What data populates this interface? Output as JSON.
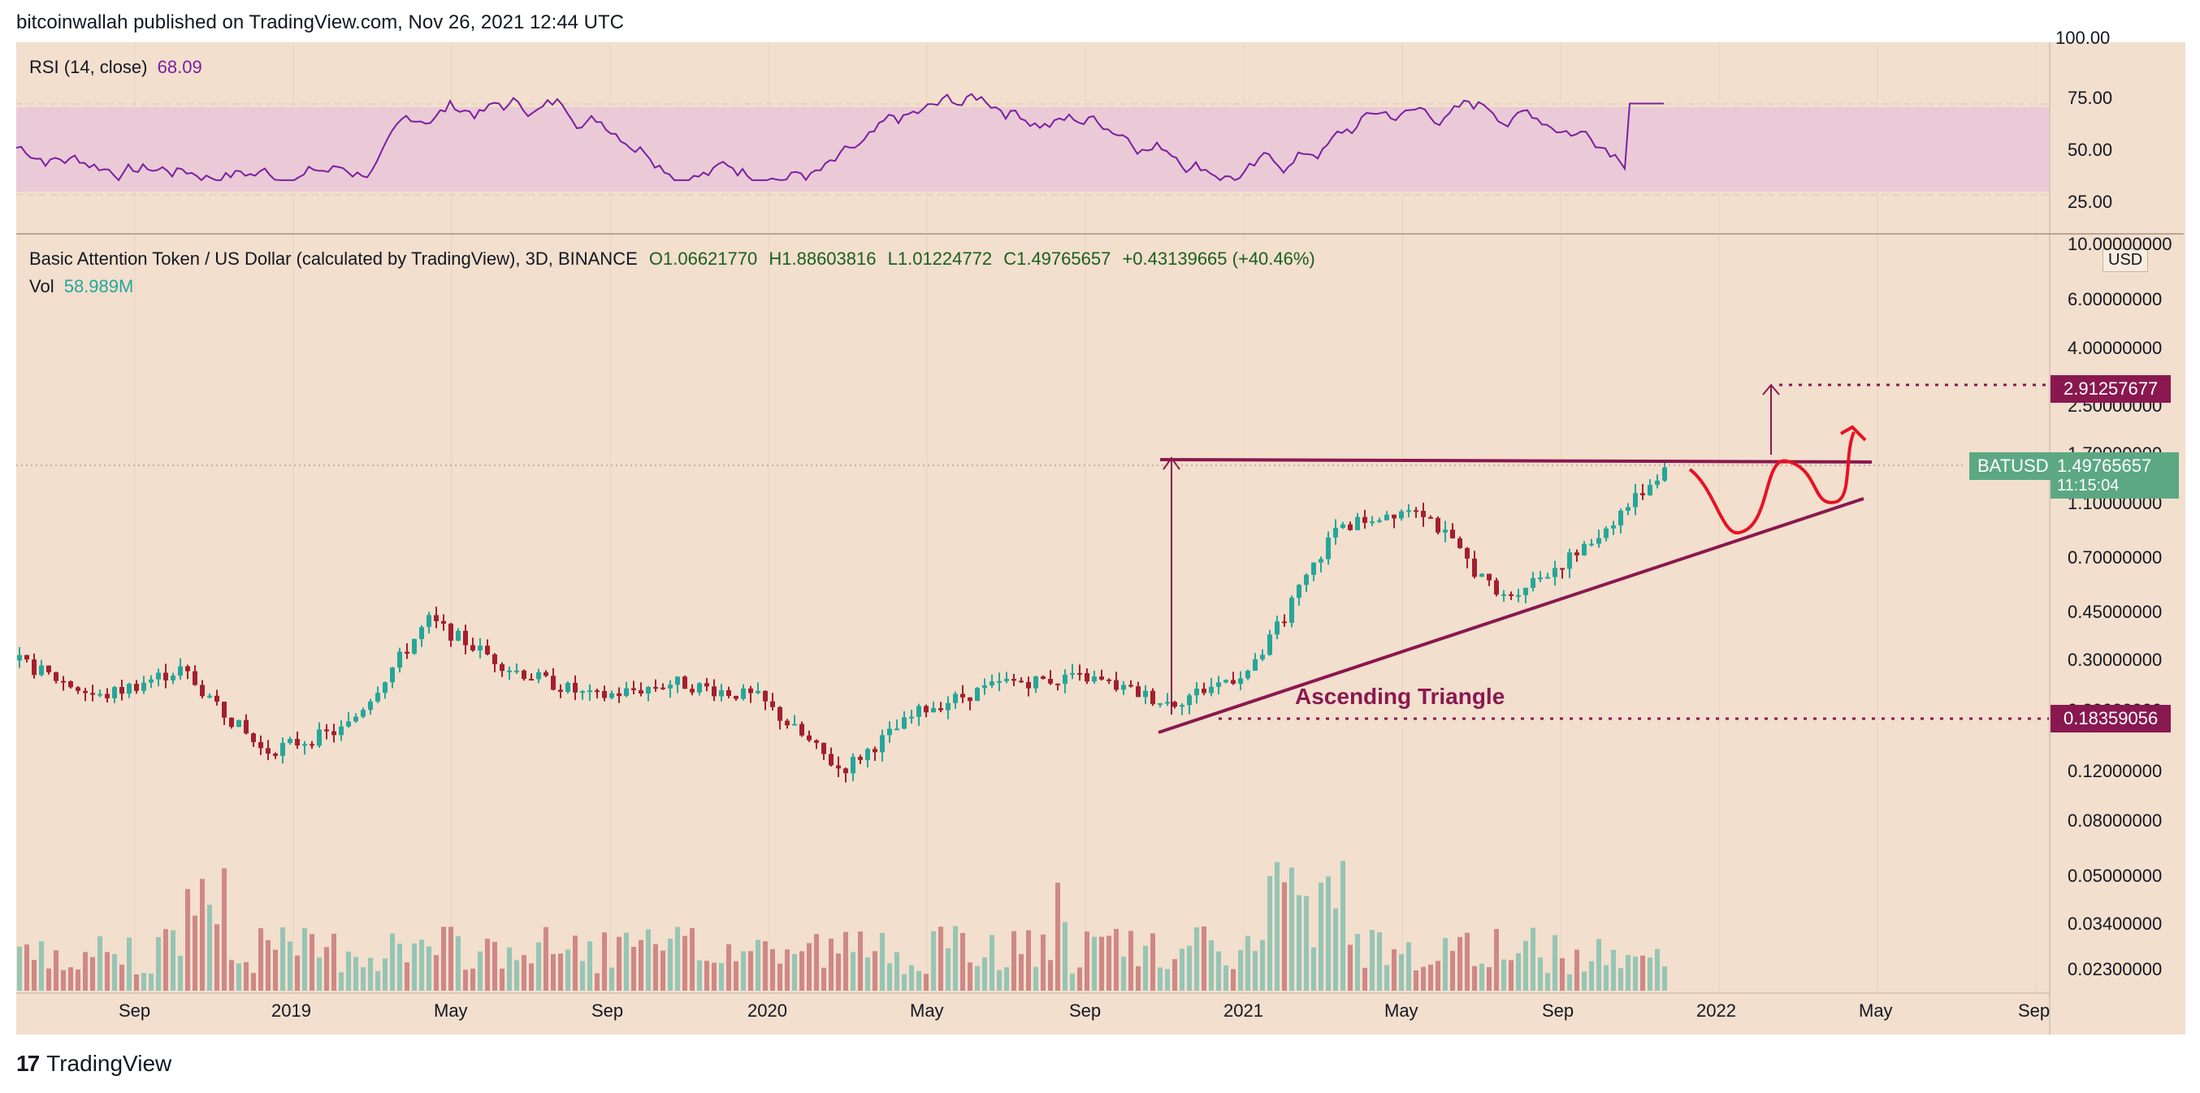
{
  "header": {
    "published": "bitcoinwallah published on TradingView.com, Nov 26, 2021 12:44 UTC"
  },
  "rsi": {
    "label": "RSI (14, close)",
    "value": "68.09",
    "ticks": [
      "100.00",
      "75.00",
      "50.00",
      "25.00"
    ]
  },
  "main_legend": {
    "title": "Basic Attention Token / US Dollar (calculated by TradingView), 3D, BINANCE",
    "open": "O1.06621770",
    "high": "H1.88603816",
    "low": "L1.01224772",
    "close": "C1.49765657",
    "change": "+0.43139665 (+40.46%)",
    "vol_label": "Vol",
    "vol_value": "58.989M"
  },
  "price_axis": {
    "currency": "USD",
    "ticks": [
      "10.00000000",
      "6.00000000",
      "4.00000000",
      "2.50000000",
      "1.70000000",
      "1.10000000",
      "0.70000000",
      "0.45000000",
      "0.30000000",
      "0.20000000",
      "0.12000000",
      "0.08000000",
      "0.05000000",
      "0.03400000",
      "0.02300000"
    ],
    "target_label": "2.91257677",
    "symbol_label": "BATUSD",
    "current_price": "1.49765657",
    "countdown": "11:15:04",
    "support_label": "0.18359056"
  },
  "time_axis": {
    "ticks": [
      "Sep",
      "2019",
      "May",
      "Sep",
      "2020",
      "May",
      "Sep",
      "2021",
      "May",
      "Sep",
      "2022",
      "May",
      "Sep"
    ]
  },
  "annotation": {
    "pattern_label": "Ascending Triangle"
  },
  "footer": {
    "brand": "TradingView"
  },
  "colors": {
    "up": "#26a69a",
    "down": "#a31f2e",
    "accent": "#8a1850",
    "rsi_line": "#7b1fa2",
    "rsi_band": "#e9c8d7",
    "projection": "#e81123",
    "price_badge": "#5ba883"
  },
  "chart_data": {
    "type": "candlestick",
    "title": "Basic Attention Token / US Dollar (calculated by TradingView), 3D, BINANCE",
    "scale": "log",
    "ylim": [
      0.02,
      10
    ],
    "x_categories": [
      "Sep",
      "2019",
      "May",
      "Sep",
      "2020",
      "May",
      "Sep",
      "2021",
      "May",
      "Sep",
      "2022",
      "May",
      "Sep"
    ],
    "series": [
      {
        "name": "BATUSD",
        "x": [
          "2018-07",
          "2018-09",
          "2018-11",
          "2019-01",
          "2019-03",
          "2019-05",
          "2019-07",
          "2019-09",
          "2019-11",
          "2020-01",
          "2020-03",
          "2020-05",
          "2020-07",
          "2020-09",
          "2020-11",
          "2021-01",
          "2021-03",
          "2021-05",
          "2021-07",
          "2021-09",
          "2021-11"
        ],
        "values": [
          0.3,
          0.22,
          0.28,
          0.14,
          0.17,
          0.42,
          0.28,
          0.22,
          0.25,
          0.22,
          0.12,
          0.2,
          0.25,
          0.26,
          0.21,
          0.28,
          0.9,
          1.1,
          0.5,
          0.75,
          1.5
        ]
      }
    ],
    "rsi": {
      "name": "RSI (14, close)",
      "ylim": [
        0,
        100
      ],
      "bands": [
        30,
        70
      ],
      "last": 68.09
    },
    "annotations": {
      "resistance": 1.6,
      "target": 2.91257677,
      "support": 0.18359056,
      "current": 1.49765657,
      "pattern": "Ascending Triangle"
    }
  }
}
